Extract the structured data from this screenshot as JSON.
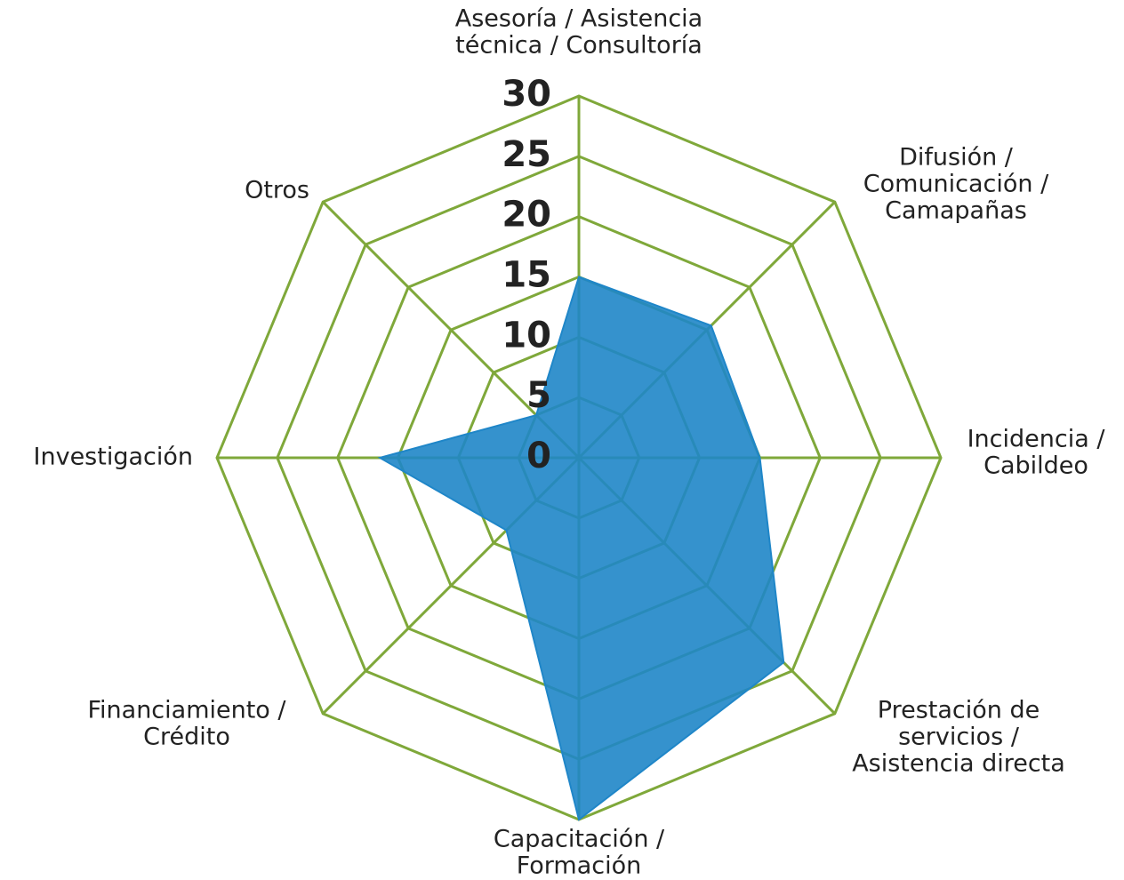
{
  "chart_data": {
    "type": "radar",
    "categories": [
      [
        "Asesoría / Asistencia",
        "técnica / Consultoría"
      ],
      [
        "Difusión /",
        "Comunicación /",
        "Camapañas"
      ],
      [
        "Incidencia /",
        "Cabildeo"
      ],
      [
        "Prestación de",
        "servicios /",
        "Asistencia directa"
      ],
      [
        "Capacitación /",
        "Formación"
      ],
      [
        "Financiamiento /",
        "Crédito"
      ],
      [
        "Investigación"
      ],
      [
        "Otros"
      ]
    ],
    "values": [
      15,
      15.5,
      15,
      24,
      30,
      8.5,
      16.5,
      5
    ],
    "color": "#1f86c8",
    "grid_color": "#7fa83a",
    "ylim": [
      0,
      30
    ],
    "yticks": [
      0,
      5,
      10,
      15,
      20,
      25,
      30
    ]
  }
}
